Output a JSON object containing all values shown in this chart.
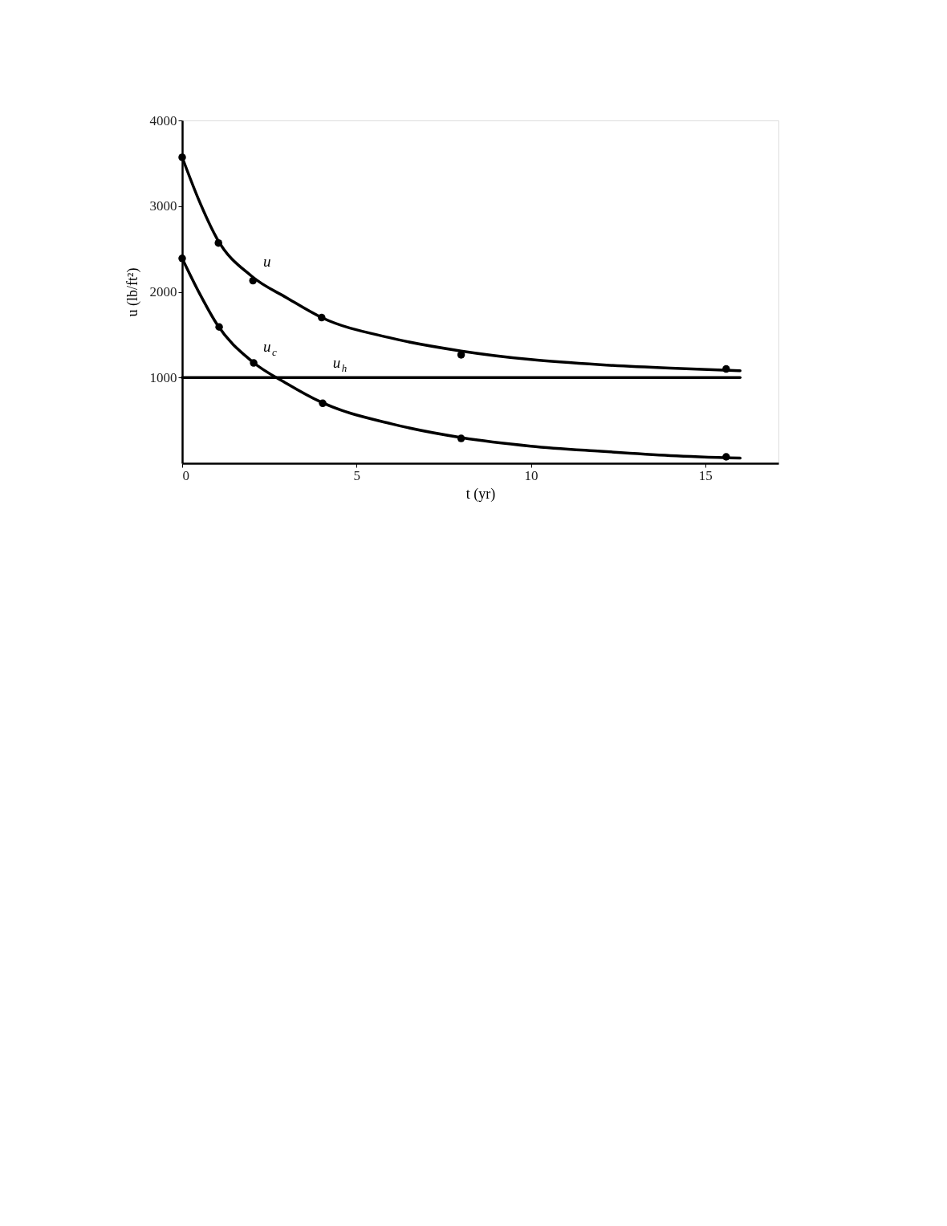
{
  "chart_data": {
    "type": "line",
    "xlabel": "t (yr)",
    "ylabel": "u (lb/ft²)",
    "xlim": [
      0,
      17.1
    ],
    "ylim": [
      0,
      4000
    ],
    "xticks": [
      0,
      5,
      10,
      15
    ],
    "yticks": [
      1000,
      2000,
      3000,
      4000
    ],
    "grid": false,
    "line_style": "solid",
    "series": [
      {
        "name": "u",
        "color": "#000000",
        "marker": "none",
        "x": [
          0,
          0.5,
          1,
          2,
          3,
          4,
          6,
          8,
          10,
          12,
          14,
          16
        ],
        "values": [
          3570,
          3050,
          2620,
          2180,
          1930,
          1700,
          1460,
          1310,
          1210,
          1150,
          1110,
          1080
        ]
      },
      {
        "name": "u$_{c}$",
        "color": "#000000",
        "marker": "none",
        "x": [
          0,
          0.5,
          1,
          2,
          3,
          4,
          6,
          8,
          10,
          12,
          14,
          16
        ],
        "values": [
          2390,
          1980,
          1620,
          1190,
          930,
          710,
          460,
          300,
          200,
          140,
          90,
          60
        ]
      },
      {
        "name": "u$_{h}$",
        "color": "#000000",
        "marker": "none",
        "x": [
          0,
          4,
          16
        ],
        "values": [
          1000,
          1000,
          1000
        ]
      },
      {
        "type": "scatter",
        "color": "#000000",
        "marker": "circle",
        "x": [
          0,
          1.04,
          2.03,
          4.0,
          8.0,
          15.6
        ],
        "values": [
          3570,
          2570,
          2130,
          1700,
          1265,
          1100
        ]
      },
      {
        "type": "scatter",
        "color": "#000000",
        "marker": "circle",
        "x": [
          0,
          1.06,
          2.05,
          4.03,
          8.0,
          15.6
        ],
        "values": [
          2390,
          1590,
          1170,
          700,
          290,
          75
        ]
      }
    ]
  }
}
